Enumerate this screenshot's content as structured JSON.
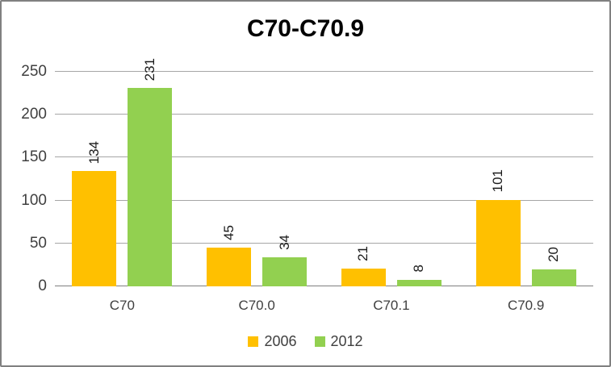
{
  "frame": {
    "background": "#FFFFFF",
    "border_color": "#808080"
  },
  "chart_data": {
    "type": "bar",
    "title": "C70-C70.9",
    "categories": [
      "C70",
      "C70.0",
      "C70.1",
      "C70.9"
    ],
    "series": [
      {
        "name": "2006",
        "color": "#FFC000",
        "values": [
          134,
          45,
          21,
          101
        ]
      },
      {
        "name": "2012",
        "color": "#92D050",
        "values": [
          231,
          34,
          8,
          20
        ]
      }
    ],
    "yticks": [
      0,
      50,
      100,
      150,
      200,
      250
    ],
    "ylim": [
      0,
      250
    ],
    "grid": true,
    "gridline_color": "#A6A6A6",
    "axis_line_color": "#7F7F7F",
    "tick_text_color": "#3F3F3F",
    "bar_label_color": "#1A1A1A",
    "bar_labels_rotated": true,
    "legend_position": "bottom"
  }
}
